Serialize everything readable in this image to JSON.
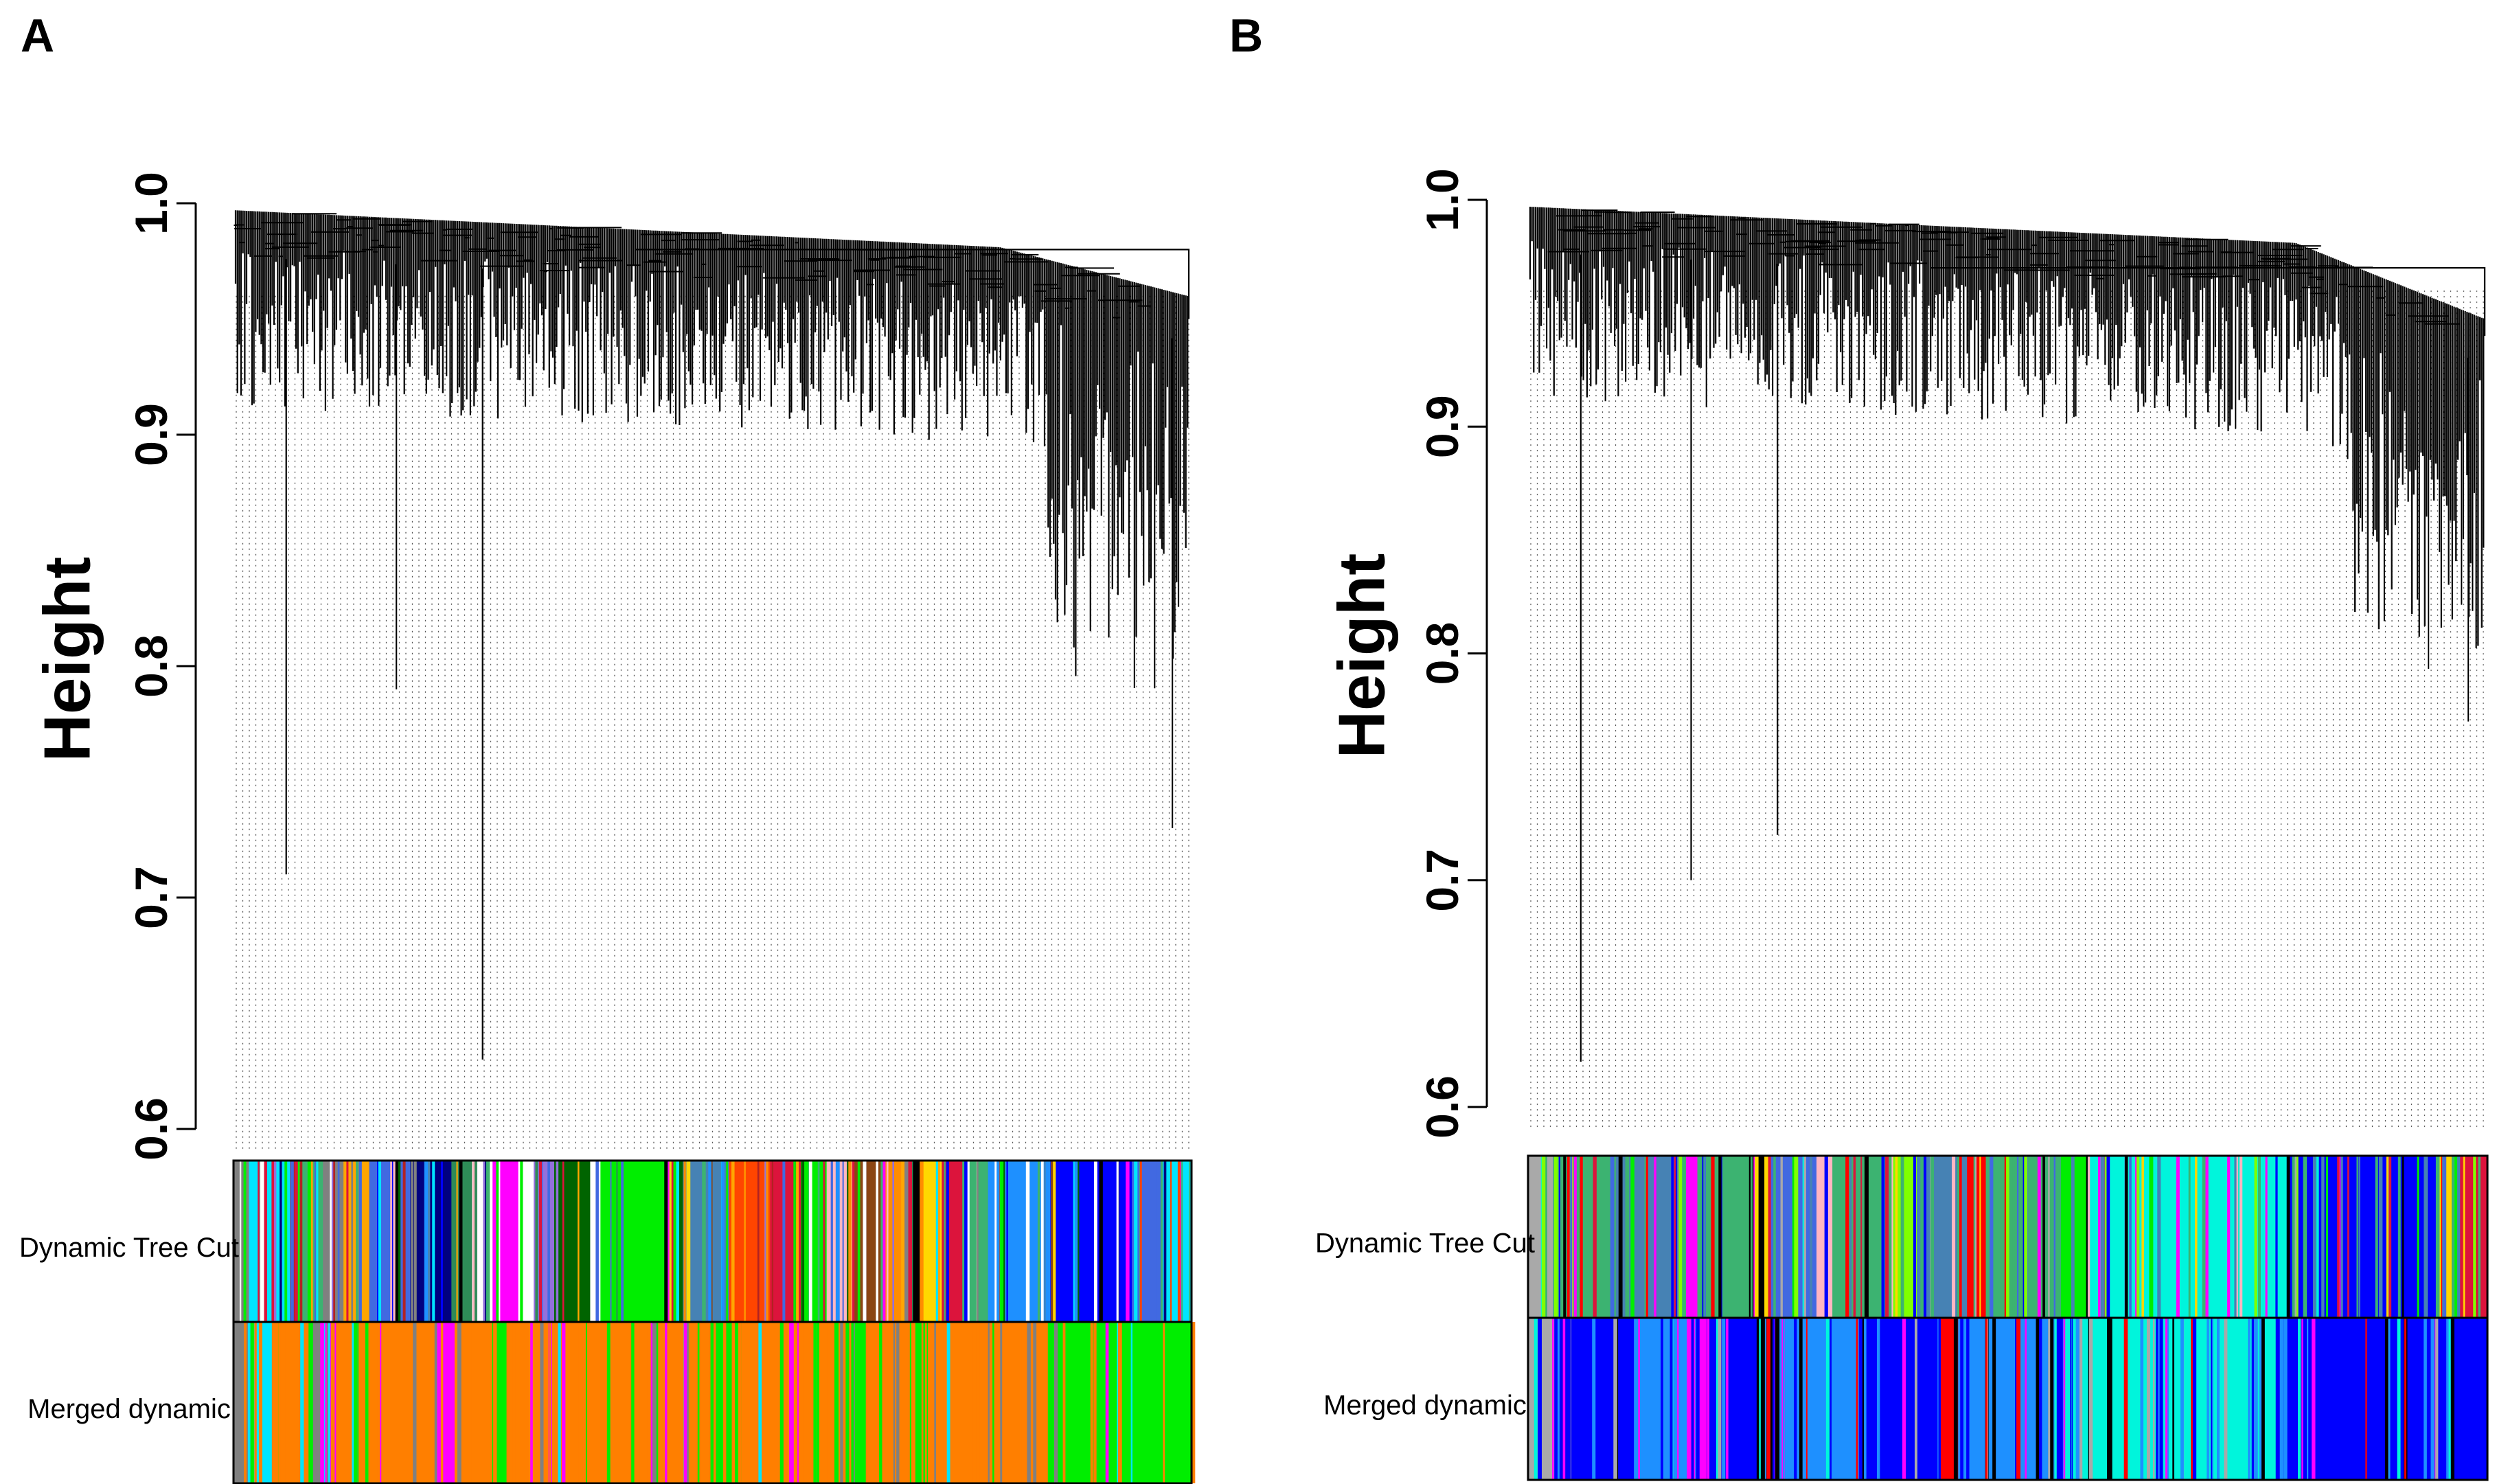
{
  "panels": [
    {
      "letter": "A"
    },
    {
      "letter": "B"
    }
  ],
  "chart_data": [
    {
      "type": "dendrogram",
      "panel": "A",
      "ylabel": "Height",
      "ylim": [
        0.6,
        1.0
      ],
      "yticks": [
        0.6,
        0.7,
        0.8,
        0.9,
        1.0
      ],
      "ytick_labels": [
        "0.6",
        "0.7",
        "0.8",
        "0.9",
        "1.0"
      ],
      "top_merge_height": 0.98,
      "notable_low_branches": [
        0.71,
        0.63,
        0.79,
        0.73
      ],
      "color_rows": [
        {
          "label": "Dynamic Tree Cut",
          "segments": [
            {
              "color": "#808080",
              "frac": 0.015
            },
            {
              "color": "#00e5ff",
              "frac": 0.04
            },
            {
              "color": "#b22222",
              "frac": 0.012
            },
            {
              "color": "#3cb371",
              "frac": 0.02
            },
            {
              "color": "#808080",
              "frac": 0.02
            },
            {
              "color": "#ffa500",
              "frac": 0.025
            },
            {
              "color": "#4169e1",
              "frac": 0.04
            },
            {
              "color": "#000080",
              "frac": 0.04
            },
            {
              "color": "#2e8b57",
              "frac": 0.02
            },
            {
              "color": "#ffffff",
              "frac": 0.02
            },
            {
              "color": "#ff00ff",
              "frac": 0.025
            },
            {
              "color": "#ffffff",
              "frac": 0.015
            },
            {
              "color": "#9370db",
              "frac": 0.02
            },
            {
              "color": "#006400",
              "frac": 0.035
            },
            {
              "color": "#ffffff",
              "frac": 0.01
            },
            {
              "color": "#00ee00",
              "frac": 0.075
            },
            {
              "color": "#4682b4",
              "frac": 0.05
            },
            {
              "color": "#ff4500",
              "frac": 0.04
            },
            {
              "color": "#dc143c",
              "frac": 0.03
            },
            {
              "color": "#00ee00",
              "frac": 0.025
            },
            {
              "color": "#ffb6c1",
              "frac": 0.025
            },
            {
              "color": "#8b4513",
              "frac": 0.03
            },
            {
              "color": "#ff8c00",
              "frac": 0.025
            },
            {
              "color": "#000000",
              "frac": 0.012
            },
            {
              "color": "#ffd700",
              "frac": 0.02
            },
            {
              "color": "#dc143c",
              "frac": 0.02
            },
            {
              "color": "#3cb371",
              "frac": 0.025
            },
            {
              "color": "#1e90ff",
              "frac": 0.06
            },
            {
              "color": "#0000ff",
              "frac": 0.08
            },
            {
              "color": "#4169e1",
              "frac": 0.03
            },
            {
              "color": "#00e5ff",
              "frac": 0.028
            }
          ]
        },
        {
          "label": "Merged dynamic",
          "segments": [
            {
              "color": "#808080",
              "frac": 0.015
            },
            {
              "color": "#00e5ff",
              "frac": 0.025
            },
            {
              "color": "#ff7f00",
              "frac": 0.04
            },
            {
              "color": "#808080",
              "frac": 0.02
            },
            {
              "color": "#ff7f00",
              "frac": 0.11
            },
            {
              "color": "#ff00ff",
              "frac": 0.02
            },
            {
              "color": "#ff7f00",
              "frac": 0.04
            },
            {
              "color": "#00ee00",
              "frac": 0.015
            },
            {
              "color": "#ff7f00",
              "frac": 0.22
            },
            {
              "color": "#00ee00",
              "frac": 0.025
            },
            {
              "color": "#ff7f00",
              "frac": 0.05
            },
            {
              "color": "#ff00ff",
              "frac": 0.01
            },
            {
              "color": "#ff7f00",
              "frac": 0.05
            },
            {
              "color": "#00ee00",
              "frac": 0.02
            },
            {
              "color": "#ff7f00",
              "frac": 0.19
            },
            {
              "color": "#00ee00",
              "frac": 0.15
            }
          ]
        }
      ]
    },
    {
      "type": "dendrogram",
      "panel": "B",
      "ylabel": "Height",
      "ylim": [
        0.6,
        1.0
      ],
      "yticks": [
        0.6,
        0.7,
        0.8,
        0.9,
        1.0
      ],
      "ytick_labels": [
        "0.6",
        "0.7",
        "0.8",
        "0.9",
        "1.0"
      ],
      "top_merge_height": 0.97,
      "notable_low_branches": [
        0.62,
        0.72,
        0.7,
        0.77
      ],
      "color_rows": [
        {
          "label": "Dynamic Tree Cut",
          "segments": [
            {
              "color": "#a9a9a9",
              "frac": 0.02
            },
            {
              "color": "#3cb371",
              "frac": 0.05
            },
            {
              "color": "#4682b4",
              "frac": 0.05
            },
            {
              "color": "#ff00ff",
              "frac": 0.015
            },
            {
              "color": "#3cb371",
              "frac": 0.04
            },
            {
              "color": "#000000",
              "frac": 0.015
            },
            {
              "color": "#4169e1",
              "frac": 0.04
            },
            {
              "color": "#ffb6c1",
              "frac": 0.015
            },
            {
              "color": "#3cb371",
              "frac": 0.045
            },
            {
              "color": "#7fff00",
              "frac": 0.02
            },
            {
              "color": "#4682b4",
              "frac": 0.04
            },
            {
              "color": "#ff0000",
              "frac": 0.015
            },
            {
              "color": "#3cb371",
              "frac": 0.06
            },
            {
              "color": "#00ee00",
              "frac": 0.02
            },
            {
              "color": "#00f5dc",
              "frac": 0.16
            },
            {
              "color": "#0000ff",
              "frac": 0.12
            },
            {
              "color": "#ffd700",
              "frac": 0.012
            },
            {
              "color": "#dc143c",
              "frac": 0.028
            }
          ]
        },
        {
          "label": "Merged dynamic",
          "segments": [
            {
              "color": "#a9a9a9",
              "frac": 0.02
            },
            {
              "color": "#0000ff",
              "frac": 0.06
            },
            {
              "color": "#1e90ff",
              "frac": 0.04
            },
            {
              "color": "#ff00ff",
              "frac": 0.015
            },
            {
              "color": "#0000ff",
              "frac": 0.04
            },
            {
              "color": "#000000",
              "frac": 0.015
            },
            {
              "color": "#1e90ff",
              "frac": 0.06
            },
            {
              "color": "#0000ff",
              "frac": 0.06
            },
            {
              "color": "#ff0000",
              "frac": 0.015
            },
            {
              "color": "#1e90ff",
              "frac": 0.08
            },
            {
              "color": "#00f5dc",
              "frac": 0.16
            },
            {
              "color": "#0000ff",
              "frac": 0.16
            }
          ]
        }
      ]
    }
  ]
}
